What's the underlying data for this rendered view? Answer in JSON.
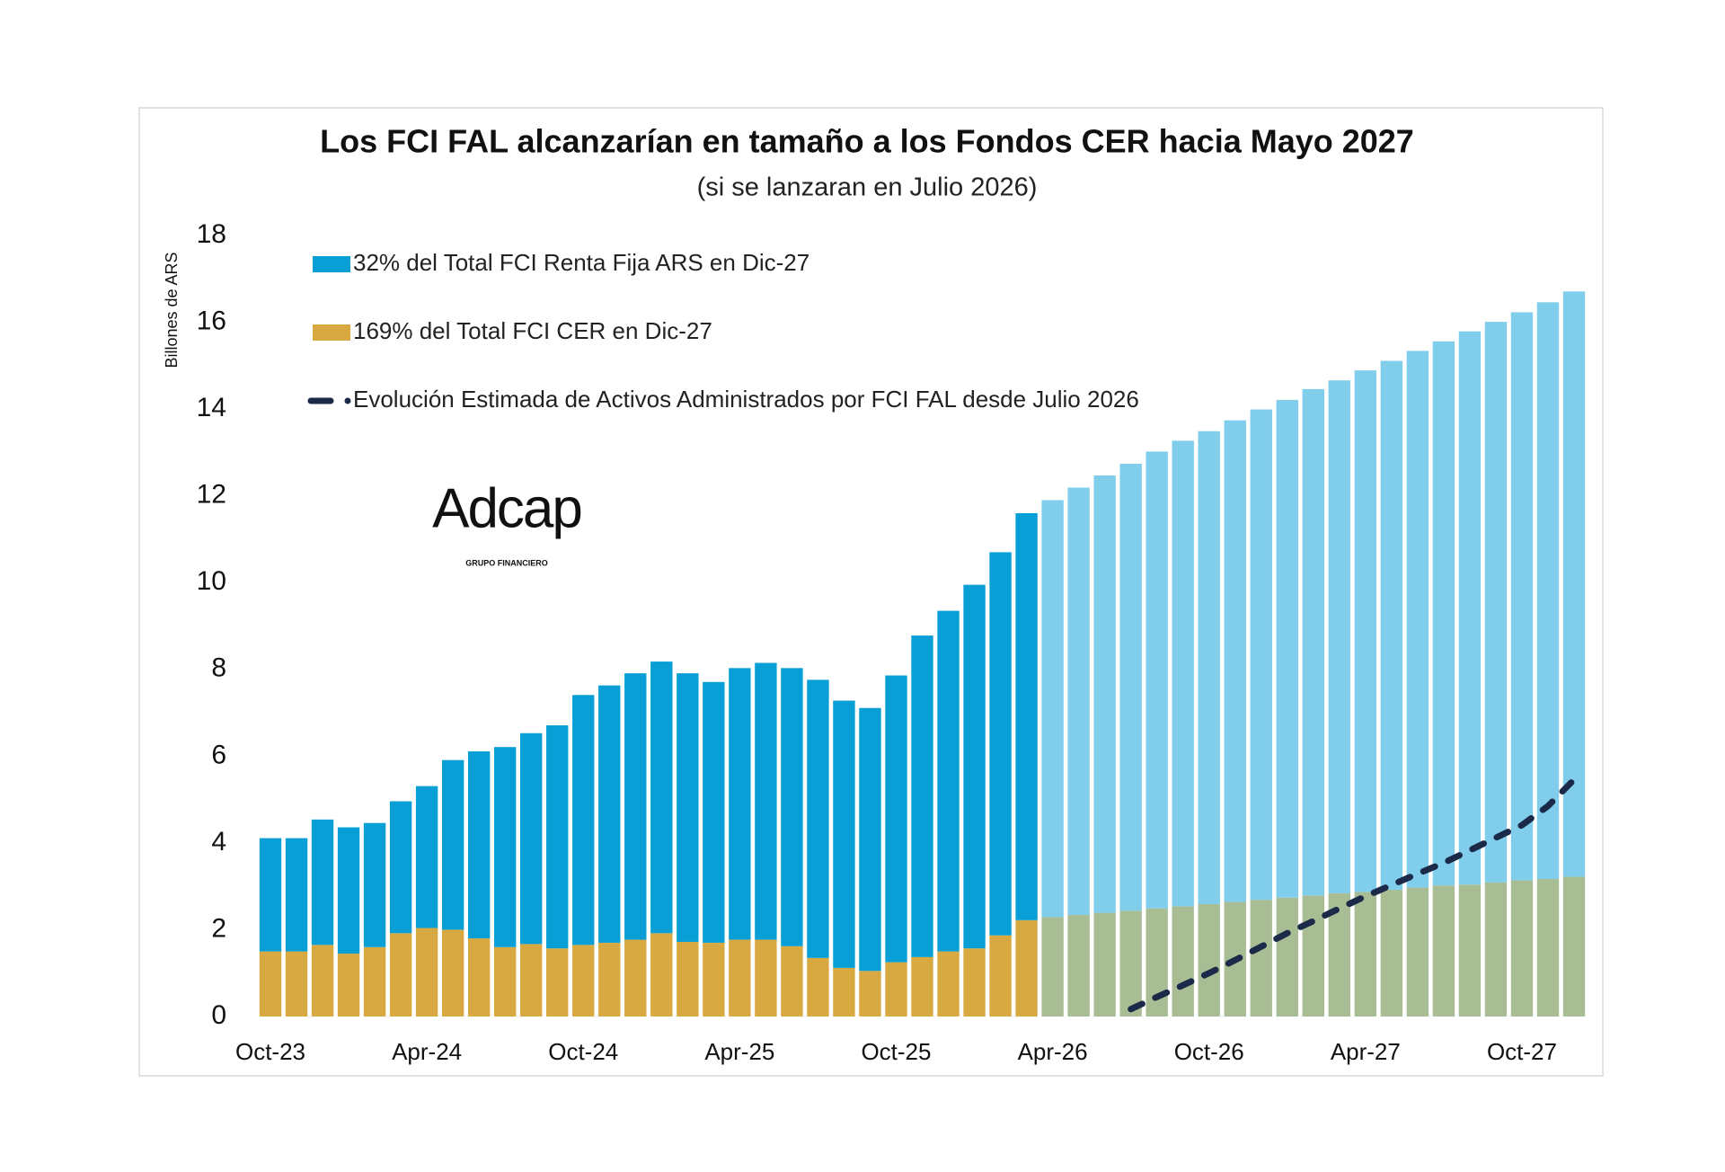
{
  "chart_data": {
    "type": "bar",
    "stacked": true,
    "title": "Los FCI FAL alcanzarían en tamaño a los Fondos CER hacia Mayo 2027",
    "subtitle": "(si se lanzaran en Julio 2026)",
    "y_label": "Billones de ARS",
    "logo": {
      "name": "Adcap",
      "tagline": "GRUPO FINANCIERO"
    },
    "categories": [
      "Oct-23",
      null,
      null,
      null,
      null,
      null,
      "Apr-24",
      null,
      null,
      null,
      null,
      null,
      "Oct-24",
      null,
      null,
      null,
      null,
      null,
      "Apr-25",
      null,
      null,
      null,
      null,
      null,
      "Oct-25",
      null,
      null,
      null,
      null,
      null,
      "Apr-26",
      null,
      null,
      null,
      null,
      null,
      "Oct-26",
      null,
      null,
      null,
      null,
      null,
      "Apr-27",
      null,
      null,
      null,
      null,
      null,
      "Oct-27",
      null,
      null
    ],
    "ylim": [
      0,
      18
    ],
    "yticks": [
      0,
      2,
      4,
      6,
      8,
      10,
      12,
      14,
      16,
      18
    ],
    "grid": false,
    "series": [
      {
        "name": "169% del Total FCI CER en Dic-27",
        "type": "bar",
        "color": "#d9a941",
        "colors": [
          "#d9a941",
          "#d9a941",
          "#d9a941",
          "#d9a941",
          "#d9a941",
          "#d9a941",
          "#d9a941",
          "#d9a941",
          "#d9a941",
          "#d9a941",
          "#d9a941",
          "#d9a941",
          "#d9a941",
          "#d9a941",
          "#d9a941",
          "#d9a941",
          "#d9a941",
          "#d9a941",
          "#d9a941",
          "#d9a941",
          "#d9a941",
          "#d9a941",
          "#d9a941",
          "#d9a941",
          "#d9a941",
          "#d9a941",
          "#d9a941",
          "#d9a941",
          "#d9a941",
          "#d9a941",
          "#a9bd95",
          "#a9bd95",
          "#a9bd95",
          "#a9bd95",
          "#a9bd95",
          "#a9bd95",
          "#a9bd95",
          "#a9bd95",
          "#a9bd95",
          "#a9bd95",
          "#a9bd95",
          "#a9bd95",
          "#a9bd95",
          "#a9bd95",
          "#a9bd95",
          "#a9bd95",
          "#a9bd95",
          "#a9bd95",
          "#a9bd95",
          "#a9bd95",
          "#a9bd95"
        ],
        "values": [
          1.5,
          1.5,
          1.65,
          1.45,
          1.6,
          1.92,
          2.04,
          2.0,
          1.8,
          1.6,
          1.67,
          1.57,
          1.65,
          1.7,
          1.77,
          1.92,
          1.72,
          1.7,
          1.77,
          1.77,
          1.62,
          1.35,
          1.12,
          1.05,
          1.25,
          1.37,
          1.5,
          1.57,
          1.87,
          2.22,
          2.29,
          2.34,
          2.39,
          2.44,
          2.49,
          2.54,
          2.59,
          2.64,
          2.69,
          2.74,
          2.79,
          2.84,
          2.87,
          2.92,
          2.97,
          3.02,
          3.04,
          3.09,
          3.14,
          3.17,
          3.22
        ]
      },
      {
        "name": "32% del Total FCI Renta Fija ARS en Dic-27",
        "type": "bar",
        "color": "#079fd6",
        "colors": [
          "#079fd6",
          "#079fd6",
          "#079fd6",
          "#079fd6",
          "#079fd6",
          "#079fd6",
          "#079fd6",
          "#079fd6",
          "#079fd6",
          "#079fd6",
          "#079fd6",
          "#079fd6",
          "#079fd6",
          "#079fd6",
          "#079fd6",
          "#079fd6",
          "#079fd6",
          "#079fd6",
          "#079fd6",
          "#079fd6",
          "#079fd6",
          "#079fd6",
          "#079fd6",
          "#079fd6",
          "#079fd6",
          "#079fd6",
          "#079fd6",
          "#079fd6",
          "#079fd6",
          "#079fd6",
          "#80cdec",
          "#80cdec",
          "#80cdec",
          "#80cdec",
          "#80cdec",
          "#80cdec",
          "#80cdec",
          "#80cdec",
          "#80cdec",
          "#80cdec",
          "#80cdec",
          "#80cdec",
          "#80cdec",
          "#80cdec",
          "#80cdec",
          "#80cdec",
          "#80cdec",
          "#80cdec",
          "#80cdec",
          "#80cdec",
          "#80cdec"
        ],
        "values": [
          2.61,
          2.61,
          2.89,
          2.91,
          2.86,
          3.04,
          3.27,
          3.91,
          4.31,
          4.61,
          4.86,
          5.14,
          5.76,
          5.93,
          6.14,
          6.26,
          6.19,
          6.01,
          6.26,
          6.38,
          6.41,
          6.41,
          6.16,
          6.06,
          6.61,
          7.41,
          7.85,
          8.38,
          8.83,
          9.38,
          9.61,
          9.85,
          10.08,
          10.3,
          10.53,
          10.73,
          10.9,
          11.1,
          11.3,
          11.47,
          11.67,
          11.82,
          12.02,
          12.19,
          12.37,
          12.54,
          12.75,
          12.92,
          13.09,
          13.29,
          13.49
        ]
      },
      {
        "name": "Evolución Estimada de Activos Administrados por FCI FAL desde Julio 2026",
        "type": "line",
        "dashed": true,
        "color": "#1b2a48",
        "values": [
          null,
          null,
          null,
          null,
          null,
          null,
          null,
          null,
          null,
          null,
          null,
          null,
          null,
          null,
          null,
          null,
          null,
          null,
          null,
          null,
          null,
          null,
          null,
          null,
          null,
          null,
          null,
          null,
          null,
          null,
          null,
          null,
          null,
          0.17,
          0.45,
          0.72,
          1.0,
          1.3,
          1.61,
          1.92,
          2.2,
          2.49,
          2.77,
          3.03,
          3.29,
          3.54,
          3.83,
          4.12,
          4.41,
          4.85,
          5.46
        ]
      }
    ],
    "legend_order": [
      1,
      0,
      2
    ]
  }
}
